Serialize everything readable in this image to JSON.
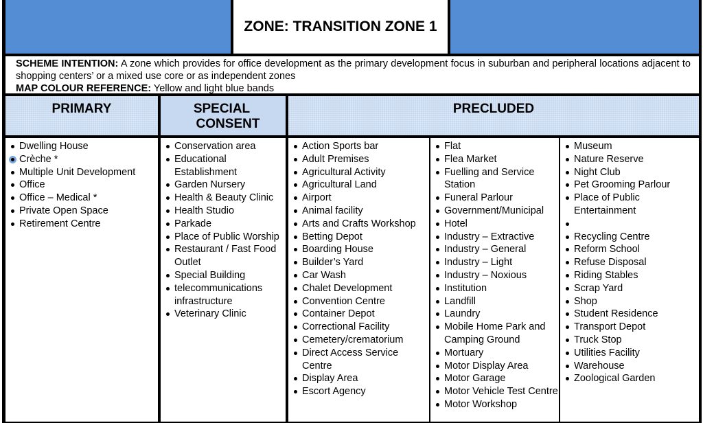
{
  "title": "ZONE: TRANSITION ZONE 1",
  "scheme": {
    "intention_label": "SCHEME INTENTION:",
    "intention_text": "A zone which provides for office development as the primary development focus in suburban and peripheral locations adjacent to shopping centers’ or a mixed use core or as independent zones",
    "map_label": "MAP COLOUR REFERENCE:",
    "map_text": "Yellow and light blue bands"
  },
  "headers": {
    "primary": "PRIMARY",
    "special_1": "SPECIAL",
    "special_2": "CONSENT",
    "precluded": "PRECLUDED"
  },
  "colors": {
    "banner_blue": "#548dd4",
    "header_blue": "#c6d9f1"
  },
  "primary": [
    "Dwelling House",
    "Crèche *",
    "Multiple Unit Development",
    "Office",
    "Office – Medical *",
    "Private Open Space",
    "Retirement Centre"
  ],
  "special_consent": [
    "Conservation area",
    "Educational Establishment",
    "Garden Nursery",
    "Health & Beauty Clinic",
    "Health Studio",
    "Parkade",
    "Place of Public Worship",
    "Restaurant / Fast Food Outlet",
    "Special Building",
    "telecommunications infrastructure",
    "Veterinary Clinic"
  ],
  "precluded_1": [
    "Action Sports bar",
    "Adult Premises",
    "Agricultural Activity",
    "Agricultural Land",
    "Airport",
    "Animal facility",
    "Arts and Crafts Workshop",
    "Betting Depot",
    "Boarding House",
    "Builder’s Yard",
    "Car Wash",
    "Chalet Development",
    "Convention Centre",
    "Container Depot",
    "Correctional Facility",
    "Cemetery/crematorium",
    "Direct Access Service Centre",
    "Display Area",
    "Escort Agency"
  ],
  "precluded_2": [
    "Flat",
    "Flea Market",
    "Fuelling and Service Station",
    "Funeral Parlour",
    "Government/Municipal",
    "Hotel",
    "Industry – Extractive",
    "Industry – General",
    "Industry – Light",
    "Industry – Noxious",
    "Institution",
    "Landfill",
    "Laundry",
    "Mobile Home Park and Camping Ground",
    "Mortuary",
    "Motor Display Area",
    "Motor Garage",
    "Motor Vehicle Test Centre",
    "Motor Workshop"
  ],
  "precluded_3": [
    "Museum",
    "Nature Reserve",
    "Night Club",
    "Pet Grooming Parlour",
    "Place of Public Entertainment",
    "",
    "Recycling Centre",
    "Reform School",
    "Refuse Disposal",
    "Riding Stables",
    "Scrap Yard",
    "Shop",
    "Student Residence",
    "Transport Depot",
    "Truck Stop",
    "Utilities Facility",
    "Warehouse",
    "Zoological Garden"
  ]
}
